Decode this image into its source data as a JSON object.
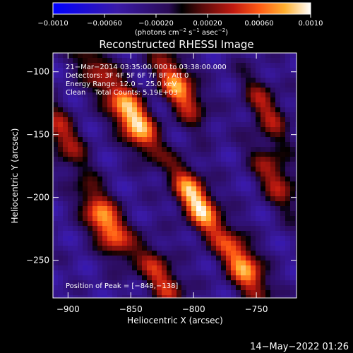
{
  "chart_data": {
    "type": "heatmap",
    "title": "Reconstructed RHESSI Image",
    "xlabel": "Heliocentric X (arcsec)",
    "ylabel": "Heliocentric Y (arcsec)",
    "xlim": [
      -912,
      -718
    ],
    "ylim": [
      -280,
      -85
    ],
    "x_ticks": [
      -900,
      -850,
      -800,
      -750
    ],
    "x_tick_labels": [
      "−900",
      "−850",
      "−800",
      "−750"
    ],
    "y_ticks": [
      -100,
      -150,
      -200,
      -250
    ],
    "y_tick_labels": [
      "−100",
      "−150",
      "−200",
      "−250"
    ],
    "colorbar": {
      "range": [
        -0.001,
        0.001
      ],
      "ticks": [
        -0.001,
        -0.0006,
        -0.0002,
        0.0002,
        0.0006,
        0.001
      ],
      "tick_labels": [
        "−0.0010",
        "−0.00060",
        "−0.00020",
        "0.00020",
        "0.00060",
        "0.0010"
      ],
      "label_text": "(photons cm",
      "label_sup1": "−2",
      "label_mid": " s",
      "label_sup2": "−1",
      "label_mid2": " asec",
      "label_sup3": "−2",
      "label_end": ")"
    },
    "annotations": [
      "21−Mar−2014 03:35:00.000 to 03:38:00.000",
      "Detectors: 3F 4F 5F 6F 7F 8F, Att 0",
      "Energy Range: 12.0 − 25.0 keV",
      "Clean    Total Counts: 5.19E+03"
    ],
    "peak_label": "Position of Peak = [−848,−138]",
    "peak": [
      -848,
      -138
    ],
    "sources": [
      {
        "x": -848,
        "y": -138,
        "amp": 1.0
      },
      {
        "x": -812,
        "y": -112,
        "amp": 0.82
      },
      {
        "x": -798,
        "y": -203,
        "amp": 0.95
      },
      {
        "x": -870,
        "y": -220,
        "amp": 0.88
      },
      {
        "x": -825,
        "y": -265,
        "amp": 0.6
      },
      {
        "x": -760,
        "y": -255,
        "amp": 0.85
      },
      {
        "x": -735,
        "y": -185,
        "amp": 0.55
      },
      {
        "x": -742,
        "y": -130,
        "amp": 0.5
      },
      {
        "x": -905,
        "y": -150,
        "amp": 0.55
      },
      {
        "x": -880,
        "y": -95,
        "amp": 0.45
      }
    ]
  },
  "footer_date": "14−May−2022 01:26"
}
